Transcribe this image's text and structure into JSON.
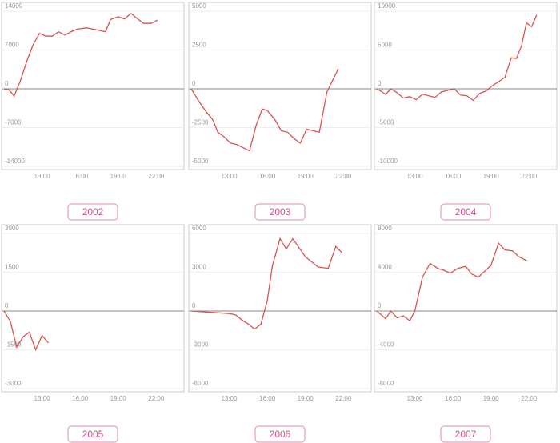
{
  "chart_data": [
    {
      "type": "line",
      "title": "2002",
      "color": "#d9534f",
      "grid": true,
      "xlim": [
        10,
        24
      ],
      "ylim": [
        -14000,
        14000
      ],
      "xticks": [
        {
          "value": 13,
          "label": "13:00"
        },
        {
          "value": 16,
          "label": "16:00"
        },
        {
          "value": 19,
          "label": "19:00"
        },
        {
          "value": 22,
          "label": "22:00"
        }
      ],
      "yticks": [
        14000,
        7000,
        0,
        -7000,
        -14000
      ],
      "x": [
        10,
        10.4,
        10.8,
        11.3,
        11.8,
        12.3,
        12.8,
        13.3,
        13.8,
        14.3,
        14.8,
        15.3,
        15.8,
        16.5,
        17.2,
        18,
        18.4,
        19,
        19.5,
        20,
        20.6,
        21,
        21.6,
        22.1
      ],
      "values": [
        0,
        -200,
        -1300,
        1500,
        5000,
        8000,
        10000,
        9500,
        9500,
        10300,
        9700,
        10300,
        10800,
        11000,
        10700,
        10300,
        12500,
        13000,
        12600,
        13600,
        12500,
        11800,
        11800,
        12400
      ]
    },
    {
      "type": "line",
      "title": "2003",
      "color": "#d9534f",
      "grid": true,
      "xlim": [
        10,
        24
      ],
      "ylim": [
        -5000,
        5000
      ],
      "xticks": [
        {
          "value": 13,
          "label": "13:00"
        },
        {
          "value": 16,
          "label": "16:00"
        },
        {
          "value": 19,
          "label": "19:00"
        },
        {
          "value": 22,
          "label": "22:00"
        }
      ],
      "yticks": [
        5000,
        2500,
        0,
        -2500,
        -5000
      ],
      "x": [
        10,
        10.6,
        11.2,
        11.7,
        12.1,
        12.6,
        13.1,
        13.6,
        14.1,
        14.6,
        15.1,
        15.6,
        16,
        16.6,
        17.1,
        17.6,
        18.1,
        18.6,
        19.1,
        19.6,
        20.1,
        20.7,
        21.6
      ],
      "values": [
        0,
        -800,
        -1500,
        -2000,
        -2800,
        -3100,
        -3500,
        -3600,
        -3800,
        -4000,
        -2400,
        -1300,
        -1400,
        -2000,
        -2700,
        -2800,
        -3200,
        -3500,
        -2600,
        -2700,
        -2800,
        -200,
        1300
      ]
    },
    {
      "type": "line",
      "title": "2004",
      "color": "#d9534f",
      "grid": true,
      "xlim": [
        10,
        24
      ],
      "ylim": [
        -10000,
        10000
      ],
      "xticks": [
        {
          "value": 13,
          "label": "13:00"
        },
        {
          "value": 16,
          "label": "16:00"
        },
        {
          "value": 19,
          "label": "19:00"
        },
        {
          "value": 22,
          "label": "22:00"
        }
      ],
      "yticks": [
        10000,
        5000,
        0,
        -5000,
        -10000
      ],
      "x": [
        10,
        10.7,
        11.1,
        11.6,
        12.1,
        12.6,
        13.1,
        13.6,
        14.1,
        14.6,
        15.1,
        15.6,
        16.1,
        16.6,
        17.1,
        17.6,
        18.1,
        18.6,
        19.1,
        19.6,
        20.1,
        20.6,
        21,
        21.4,
        21.8,
        22.2,
        22.6
      ],
      "values": [
        0,
        -700,
        0,
        -500,
        -1200,
        -1000,
        -1400,
        -700,
        -900,
        -1100,
        -400,
        -200,
        0,
        -800,
        -900,
        -1500,
        -600,
        -300,
        400,
        900,
        1500,
        4000,
        3900,
        5500,
        8500,
        8000,
        9500
      ]
    },
    {
      "type": "line",
      "title": "2005",
      "color": "#d9534f",
      "grid": true,
      "xlim": [
        10,
        24
      ],
      "ylim": [
        -3000,
        3000
      ],
      "xticks": [
        {
          "value": 13,
          "label": "13:00"
        },
        {
          "value": 16,
          "label": "16:00"
        },
        {
          "value": 19,
          "label": "19:00"
        },
        {
          "value": 22,
          "label": "22:00"
        }
      ],
      "yticks": [
        3000,
        1500,
        0,
        -1500,
        -3000
      ],
      "x": [
        10,
        10.5,
        11,
        11.5,
        12,
        12.5,
        13,
        13.5
      ],
      "values": [
        0,
        -400,
        -1400,
        -1000,
        -820,
        -1500,
        -950,
        -1230
      ]
    },
    {
      "type": "line",
      "title": "2006",
      "color": "#d9534f",
      "grid": true,
      "xlim": [
        10,
        24
      ],
      "ylim": [
        -6000,
        6000
      ],
      "xticks": [
        {
          "value": 13,
          "label": "13:00"
        },
        {
          "value": 16,
          "label": "16:00"
        },
        {
          "value": 19,
          "label": "19:00"
        },
        {
          "value": 22,
          "label": "22:00"
        }
      ],
      "yticks": [
        6000,
        3000,
        0,
        -3000,
        -6000
      ],
      "x": [
        10,
        13,
        13.5,
        14,
        14.5,
        15,
        15.5,
        16,
        16.4,
        17,
        17.5,
        18,
        19,
        20,
        20.8,
        21.4,
        21.9
      ],
      "values": [
        0,
        -200,
        -300,
        -700,
        -1000,
        -1400,
        -1000,
        800,
        3500,
        5600,
        4800,
        5600,
        4200,
        3400,
        3300,
        5000,
        4500
      ]
    },
    {
      "type": "line",
      "title": "2007",
      "color": "#d9534f",
      "grid": true,
      "xlim": [
        10,
        24
      ],
      "ylim": [
        -8000,
        8000
      ],
      "xticks": [
        {
          "value": 13,
          "label": "13:00"
        },
        {
          "value": 16,
          "label": "16:00"
        },
        {
          "value": 19,
          "label": "19:00"
        },
        {
          "value": 22,
          "label": "22:00"
        }
      ],
      "yticks": [
        8000,
        4000,
        0,
        -4000,
        -8000
      ],
      "x": [
        10,
        10.7,
        11.1,
        11.6,
        12.1,
        12.6,
        13,
        13.6,
        14.2,
        14.8,
        15.3,
        15.8,
        16.4,
        17,
        17.5,
        18,
        19,
        19.6,
        20.1,
        20.7,
        21.2,
        21.8
      ],
      "values": [
        0,
        -800,
        0,
        -700,
        -500,
        -1000,
        0,
        3500,
        4900,
        4400,
        4200,
        3900,
        4400,
        4600,
        3800,
        3500,
        4700,
        7000,
        6300,
        6200,
        5600,
        5200
      ]
    }
  ]
}
